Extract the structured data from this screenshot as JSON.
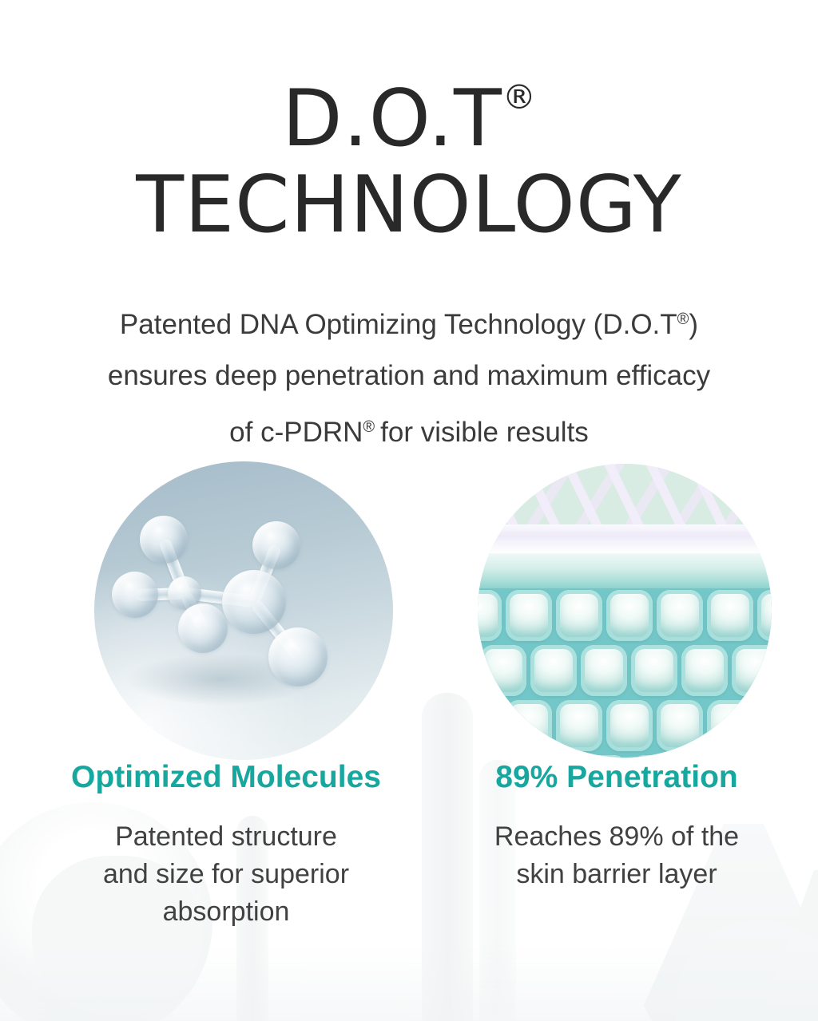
{
  "accent_color": "#18a79e",
  "title": {
    "line1": "D.O.T",
    "line2": "TECHNOLOGY",
    "registered_mark": "®"
  },
  "intro": {
    "line1_text": "Patented DNA Optimizing Technology (D.O.T",
    "registered_mark": "®",
    "line1_close": ")",
    "line2": "ensures deep penetration and maximum efficacy",
    "line3_text": "of c-PDRN",
    "line3_rest": "for visible results"
  },
  "features": [
    {
      "heading": "Optimized Molecules",
      "body": "Patented structure\nand size for superior\nabsorption",
      "image": "glass-molecule-3d-render"
    },
    {
      "heading": "89% Penetration",
      "body": "Reaches 89% of the\nskin barrier layer",
      "image": "skin-barrier-cells-3d-render"
    }
  ]
}
